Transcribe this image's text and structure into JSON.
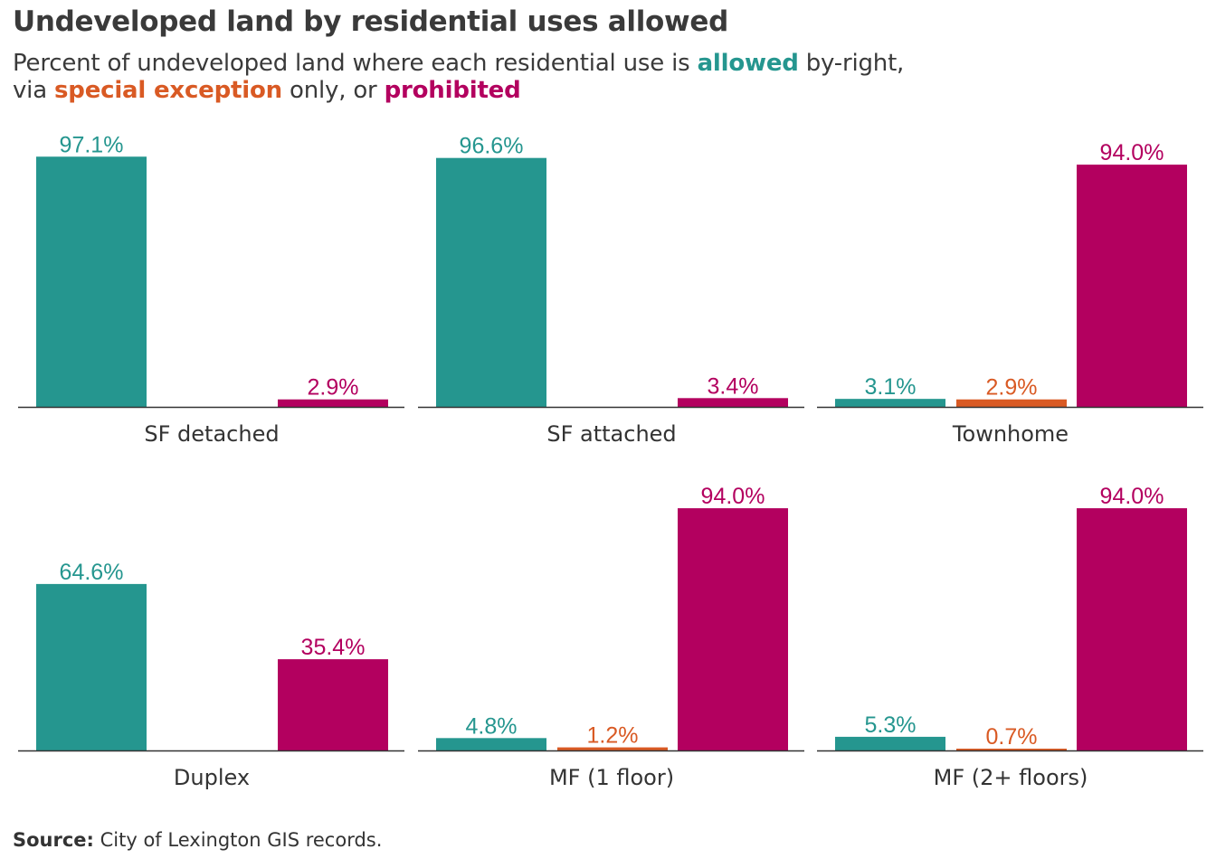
{
  "title": "Undeveloped land by residential uses allowed",
  "subtitle": {
    "line1_pre": "Percent of undeveloped land where each residential use is ",
    "allowed": "allowed",
    "line1_post": " by-right,",
    "line2_pre": "via ",
    "special": "special exception",
    "line2_mid": " only, or ",
    "prohibited": "prohibited"
  },
  "colors": {
    "allowed": "#25968f",
    "special": "#d95a24",
    "prohibited": "#b3005f",
    "axis": "#333333",
    "text": "#333333"
  },
  "source": {
    "label": "Source:",
    "text": " City of Lexington  GIS records."
  },
  "chart_data": {
    "type": "bar",
    "layout": "facets 3 columns x 2 rows",
    "ylim": [
      0,
      100
    ],
    "grid": false,
    "legend": "none (encoded in subtitle colors)",
    "series_keys": [
      "allowed",
      "special",
      "prohibited"
    ],
    "facets": [
      {
        "label": "SF detached",
        "values": [
          97.1,
          null,
          2.9
        ],
        "labels": [
          "97.1%",
          null,
          "2.9%"
        ]
      },
      {
        "label": "SF attached",
        "values": [
          96.6,
          null,
          3.4
        ],
        "labels": [
          "96.6%",
          null,
          "3.4%"
        ]
      },
      {
        "label": "Townhome",
        "values": [
          3.1,
          2.9,
          94.0
        ],
        "labels": [
          "3.1%",
          "2.9%",
          "94.0%"
        ]
      },
      {
        "label": "Duplex",
        "values": [
          64.6,
          null,
          35.4
        ],
        "labels": [
          "64.6%",
          null,
          "35.4%"
        ]
      },
      {
        "label": "MF (1 floor)",
        "values": [
          4.8,
          1.2,
          94.0
        ],
        "labels": [
          "4.8%",
          "1.2%",
          "94.0%"
        ]
      },
      {
        "label": "MF (2+ floors)",
        "values": [
          5.3,
          0.7,
          94.0
        ],
        "labels": [
          "5.3%",
          "0.7%",
          "94.0%"
        ]
      }
    ]
  }
}
